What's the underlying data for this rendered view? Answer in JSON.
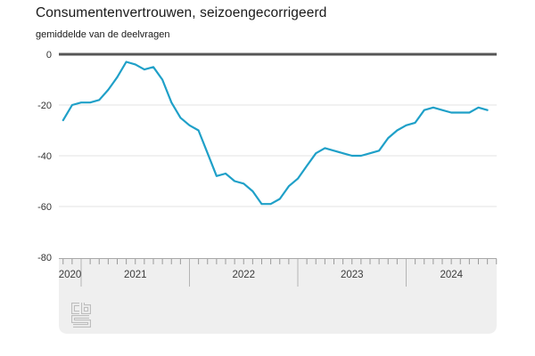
{
  "header": {
    "title": "Consumentenvertrouwen, seizoengecorrigeerd",
    "subtitle": "gemiddelde van de deelvragen"
  },
  "branding": {
    "logo": "cbs-logo"
  },
  "colors": {
    "line": "#1fa0c8",
    "zero_line": "#565656",
    "gridline": "#e3e3e3",
    "band_bg": "#efefef",
    "band_border": "#a8a8a8",
    "month_tick": "#9b9b9b",
    "year_tick": "#b4b4b4",
    "axis_label": "#333333",
    "logo": "#bdbdbd"
  },
  "chart_data": {
    "type": "line",
    "title": "Consumentenvertrouwen, seizoengecorrigeerd",
    "subtitle": "gemiddelde van de deelvragen",
    "x_unit": "month",
    "start": "2020-11",
    "end": "2024-10",
    "grid": true,
    "legend": "none",
    "ylim": [
      -80,
      0
    ],
    "y_ticks": [
      0,
      -20,
      -40,
      -60,
      -80
    ],
    "y_tick_labels": [
      "0",
      "-20",
      "-40",
      "-60",
      "-80"
    ],
    "year_labels": [
      "2020",
      "2021",
      "2022",
      "2023",
      "2024"
    ],
    "series": [
      {
        "name": "consumentenvertrouwen",
        "months": [
          "2020-11",
          "2020-12",
          "2021-01",
          "2021-02",
          "2021-03",
          "2021-04",
          "2021-05",
          "2021-06",
          "2021-07",
          "2021-08",
          "2021-09",
          "2021-10",
          "2021-11",
          "2021-12",
          "2022-01",
          "2022-02",
          "2022-03",
          "2022-04",
          "2022-05",
          "2022-06",
          "2022-07",
          "2022-08",
          "2022-09",
          "2022-10",
          "2022-11",
          "2022-12",
          "2023-01",
          "2023-02",
          "2023-03",
          "2023-04",
          "2023-05",
          "2023-06",
          "2023-07",
          "2023-08",
          "2023-09",
          "2023-10",
          "2023-11",
          "2023-12",
          "2024-01",
          "2024-02",
          "2024-03",
          "2024-04",
          "2024-05",
          "2024-06",
          "2024-07",
          "2024-08",
          "2024-09",
          "2024-10"
        ],
        "values": [
          -26,
          -20,
          -19,
          -19,
          -18,
          -14,
          -9,
          -3,
          -4,
          -6,
          -5,
          -10,
          -19,
          -25,
          -28,
          -30,
          -39,
          -48,
          -47,
          -50,
          -51,
          -54,
          -59,
          -59,
          -57,
          -52,
          -49,
          -44,
          -39,
          -37,
          -38,
          -39,
          -40,
          -40,
          -39,
          -38,
          -33,
          -30,
          -28,
          -27,
          -22,
          -21,
          -22,
          -23,
          -23,
          -23,
          -21,
          -22
        ]
      }
    ]
  }
}
